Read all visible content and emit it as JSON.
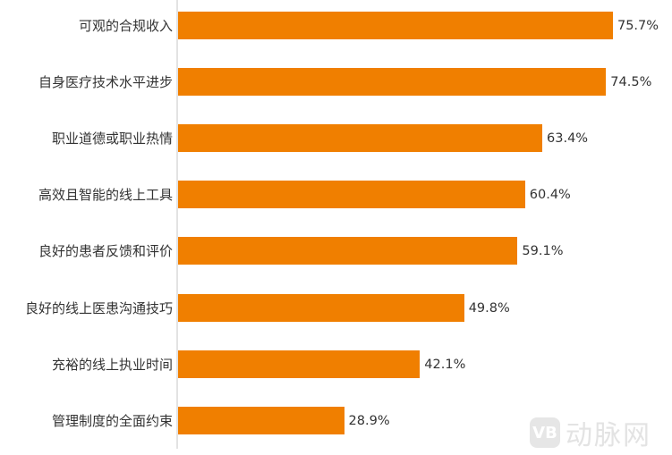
{
  "chart_data": {
    "type": "bar",
    "orientation": "horizontal",
    "title": "",
    "xlabel": "",
    "ylabel": "",
    "grid": false,
    "legend": null,
    "xlim": [
      0,
      80
    ],
    "unit": "%",
    "bar_color": "#f07f00",
    "categories": [
      "可观的合规收入",
      "自身医疗技术水平进步",
      "职业道德或职业热情",
      "高效且智能的线上工具",
      "良好的患者反馈和评价",
      "良好的线上医患沟通技巧",
      "充裕的线上执业时间",
      "管理制度的全面约束"
    ],
    "values": [
      75.7,
      74.5,
      63.4,
      60.4,
      59.1,
      49.8,
      42.1,
      28.9
    ],
    "value_labels": [
      "75.7%",
      "74.5%",
      "63.4%",
      "60.4%",
      "59.1%",
      "49.8%",
      "42.1%",
      "28.9%"
    ]
  },
  "watermark": {
    "logo": "VB",
    "text": "动脉网"
  }
}
